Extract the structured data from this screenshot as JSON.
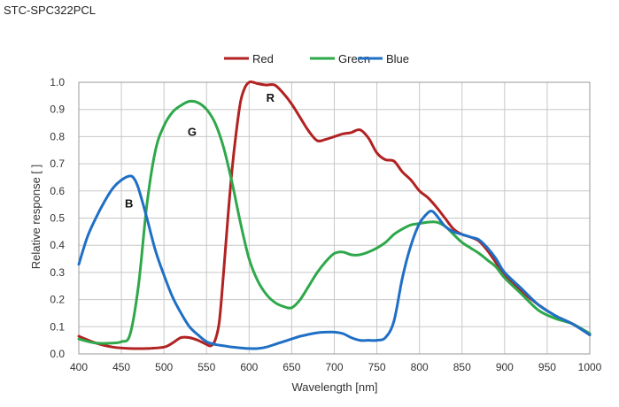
{
  "page_title": "STC-SPC322PCL",
  "chart_data": {
    "type": "line",
    "title": "",
    "xlabel": "Wavelength [nm]",
    "ylabel": "Relative response [ ]",
    "xlim": [
      400,
      1000
    ],
    "ylim": [
      0,
      1.0
    ],
    "x_ticks": [
      "400",
      "450",
      "500",
      "550",
      "600",
      "650",
      "700",
      "750",
      "800",
      "850",
      "900",
      "950",
      "1000"
    ],
    "y_ticks": [
      "0.0",
      "0.1",
      "0.2",
      "0.3",
      "0.4",
      "0.5",
      "0.6",
      "0.7",
      "0.8",
      "0.9",
      "1.0"
    ],
    "grid": true,
    "legend_position": "top-center",
    "series": [
      {
        "name": "Red",
        "color": "#b22222",
        "x": [
          400,
          420,
          440,
          460,
          480,
          500,
          510,
          520,
          530,
          540,
          550,
          555,
          560,
          565,
          570,
          575,
          580,
          585,
          590,
          595,
          600,
          605,
          610,
          620,
          630,
          640,
          650,
          660,
          670,
          680,
          690,
          700,
          710,
          720,
          730,
          740,
          750,
          760,
          770,
          780,
          790,
          800,
          810,
          820,
          830,
          840,
          850,
          860,
          870,
          880,
          890,
          900,
          920,
          940,
          960,
          980,
          1000
        ],
        "y": [
          0.065,
          0.04,
          0.025,
          0.02,
          0.02,
          0.025,
          0.04,
          0.06,
          0.06,
          0.05,
          0.035,
          0.03,
          0.05,
          0.12,
          0.3,
          0.5,
          0.68,
          0.82,
          0.93,
          0.98,
          1.0,
          1.0,
          0.995,
          0.99,
          0.99,
          0.96,
          0.92,
          0.87,
          0.82,
          0.785,
          0.79,
          0.8,
          0.81,
          0.815,
          0.825,
          0.795,
          0.74,
          0.715,
          0.71,
          0.67,
          0.64,
          0.6,
          0.575,
          0.54,
          0.5,
          0.46,
          0.44,
          0.43,
          0.415,
          0.38,
          0.335,
          0.29,
          0.23,
          0.18,
          0.14,
          0.11,
          0.07
        ]
      },
      {
        "name": "Green",
        "color": "#2ea84a",
        "x": [
          400,
          420,
          440,
          450,
          460,
          470,
          480,
          490,
          500,
          510,
          520,
          530,
          540,
          550,
          560,
          570,
          580,
          590,
          600,
          610,
          620,
          630,
          640,
          650,
          660,
          670,
          680,
          690,
          700,
          710,
          720,
          730,
          740,
          750,
          760,
          770,
          780,
          790,
          800,
          810,
          820,
          830,
          840,
          850,
          860,
          870,
          880,
          890,
          900,
          920,
          940,
          960,
          980,
          1000
        ],
        "y": [
          0.055,
          0.04,
          0.04,
          0.045,
          0.07,
          0.25,
          0.55,
          0.75,
          0.84,
          0.89,
          0.915,
          0.93,
          0.925,
          0.9,
          0.85,
          0.76,
          0.63,
          0.48,
          0.35,
          0.27,
          0.22,
          0.19,
          0.175,
          0.17,
          0.2,
          0.25,
          0.3,
          0.34,
          0.37,
          0.375,
          0.365,
          0.365,
          0.375,
          0.39,
          0.41,
          0.44,
          0.46,
          0.475,
          0.48,
          0.485,
          0.485,
          0.47,
          0.44,
          0.41,
          0.39,
          0.37,
          0.345,
          0.32,
          0.28,
          0.22,
          0.16,
          0.13,
          0.11,
          0.075
        ]
      },
      {
        "name": "Blue",
        "color": "#1f6fc5",
        "x": [
          400,
          410,
          420,
          430,
          440,
          450,
          460,
          465,
          470,
          480,
          490,
          500,
          510,
          520,
          530,
          540,
          550,
          560,
          570,
          580,
          590,
          600,
          610,
          620,
          630,
          640,
          650,
          660,
          670,
          680,
          690,
          700,
          710,
          720,
          730,
          740,
          750,
          760,
          770,
          780,
          790,
          800,
          810,
          815,
          820,
          830,
          840,
          850,
          860,
          870,
          880,
          890,
          900,
          920,
          940,
          960,
          980,
          1000
        ],
        "y": [
          0.33,
          0.43,
          0.5,
          0.56,
          0.61,
          0.64,
          0.655,
          0.645,
          0.61,
          0.5,
          0.38,
          0.29,
          0.21,
          0.15,
          0.1,
          0.07,
          0.045,
          0.035,
          0.03,
          0.025,
          0.022,
          0.02,
          0.02,
          0.025,
          0.035,
          0.045,
          0.055,
          0.065,
          0.072,
          0.078,
          0.08,
          0.08,
          0.075,
          0.06,
          0.05,
          0.05,
          0.05,
          0.06,
          0.12,
          0.28,
          0.4,
          0.48,
          0.52,
          0.525,
          0.51,
          0.47,
          0.45,
          0.44,
          0.43,
          0.42,
          0.39,
          0.35,
          0.3,
          0.24,
          0.18,
          0.14,
          0.11,
          0.07
        ]
      }
    ],
    "annotations": [
      {
        "text": "R",
        "x": 625,
        "y": 0.945
      },
      {
        "text": "G",
        "x": 533,
        "y": 0.82
      },
      {
        "text": "B",
        "x": 459,
        "y": 0.555
      }
    ]
  }
}
